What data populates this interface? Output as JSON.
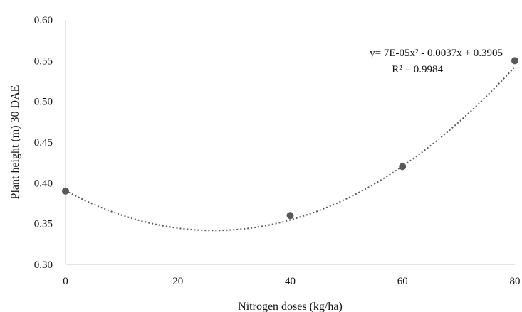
{
  "chart_data": {
    "type": "scatter",
    "title": "",
    "xlabel": "Nitrogen doses (kg/ha)",
    "ylabel": "Plant height (m)  30 DAE",
    "xlim": [
      0,
      80
    ],
    "ylim": [
      0.3,
      0.6
    ],
    "x_ticks": [
      "0",
      "20",
      "40",
      "60",
      "80"
    ],
    "y_ticks": [
      "0.30",
      "0.35",
      "0.40",
      "0.45",
      "0.50",
      "0.55",
      "0.60"
    ],
    "grid": false,
    "legend": "none",
    "series": [
      {
        "x": [
          0,
          40,
          60,
          80
        ],
        "y": [
          0.39,
          0.36,
          0.42,
          0.55
        ],
        "marker_color": "#595959"
      }
    ],
    "trendline": {
      "type": "polynomial",
      "degree": 2,
      "coefficients": {
        "a": 7e-05,
        "b": -0.0037,
        "c": 0.3905
      },
      "style": "dotted",
      "color": "#595959"
    },
    "annotations": {
      "equation": "y= 7E-05x² - 0.0037x + 0.3905",
      "r_squared": "R² = 0.9984"
    }
  }
}
